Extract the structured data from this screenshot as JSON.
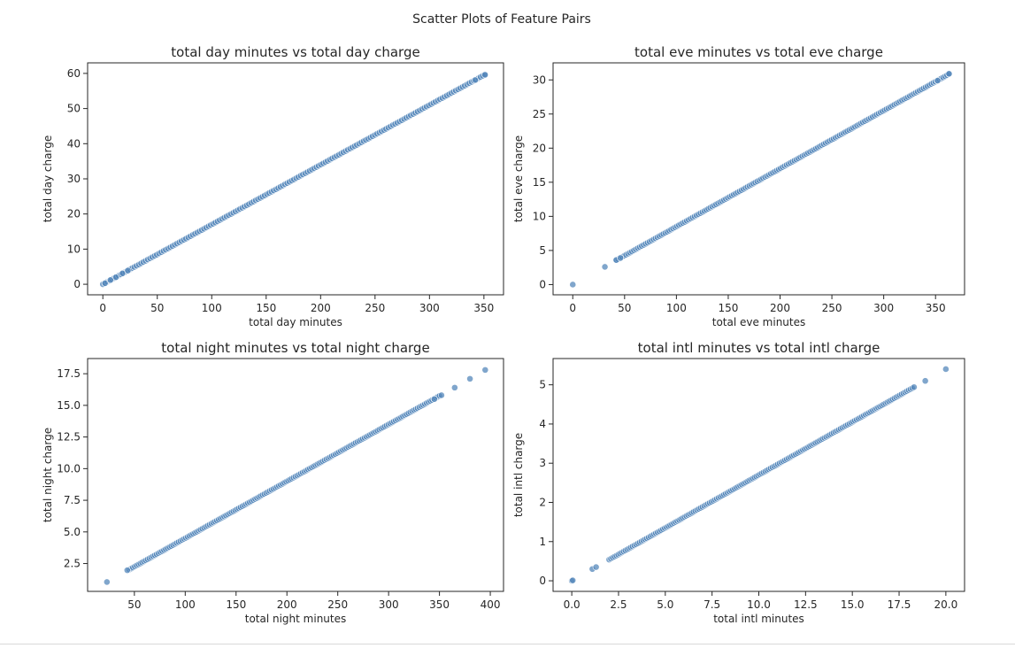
{
  "figure": {
    "suptitle": "Scatter Plots of Feature Pairs",
    "marker_color": "#4f84b8",
    "marker_edge": "#ffffff"
  },
  "chart_data": [
    {
      "type": "scatter",
      "title": "total day minutes vs total day charge",
      "xlabel": "total day minutes",
      "ylabel": "total day charge",
      "xlim": [
        -14,
        368
      ],
      "ylim": [
        -3,
        63
      ],
      "xticks": [
        0,
        50,
        100,
        150,
        200,
        250,
        300,
        350
      ],
      "yticks": [
        0,
        10,
        20,
        30,
        40,
        50,
        60
      ],
      "x_range": [
        0,
        351
      ],
      "slope": 0.17,
      "sparse_points": [
        [
          2,
          0.3
        ],
        [
          7,
          1.2
        ],
        [
          12,
          2.0
        ],
        [
          18,
          3.1
        ],
        [
          23,
          3.9
        ],
        [
          342,
          58.1
        ],
        [
          351,
          59.6
        ]
      ]
    },
    {
      "type": "scatter",
      "title": "total eve minutes vs total eve charge",
      "xlabel": "total eve minutes",
      "ylabel": "total eve charge",
      "xlim": [
        -19,
        378
      ],
      "ylim": [
        -1.5,
        32.5
      ],
      "xticks": [
        0,
        50,
        100,
        150,
        200,
        250,
        300,
        350
      ],
      "yticks": [
        0,
        5,
        10,
        15,
        20,
        25,
        30
      ],
      "x_range": [
        42,
        363
      ],
      "slope": 0.085,
      "sparse_points": [
        [
          0,
          0
        ],
        [
          31,
          2.6
        ],
        [
          42,
          3.6
        ],
        [
          46,
          3.9
        ],
        [
          352,
          29.9
        ],
        [
          363,
          30.9
        ]
      ]
    },
    {
      "type": "scatter",
      "title": "total night minutes vs total night charge",
      "xlabel": "total night minutes",
      "ylabel": "total night charge",
      "xlim": [
        4,
        413
      ],
      "ylim": [
        0.3,
        18.7
      ],
      "xticks": [
        50,
        100,
        150,
        200,
        250,
        300,
        350,
        400
      ],
      "yticks": [
        2.5,
        5.0,
        7.5,
        10.0,
        12.5,
        15.0,
        17.5
      ],
      "ytick_labels": [
        "2.5",
        "5.0",
        "7.5",
        "10.0",
        "12.5",
        "15.0",
        "17.5"
      ],
      "x_range": [
        45,
        350
      ],
      "slope": 0.045,
      "sparse_points": [
        [
          23,
          1.04
        ],
        [
          43,
          1.97
        ],
        [
          345,
          15.5
        ],
        [
          352,
          15.8
        ],
        [
          365,
          16.4
        ],
        [
          380,
          17.1
        ],
        [
          395,
          17.8
        ]
      ]
    },
    {
      "type": "scatter",
      "title": "total intl minutes vs total intl charge",
      "xlabel": "total intl minutes",
      "ylabel": "total intl charge",
      "xlim": [
        -1,
        21
      ],
      "ylim": [
        -0.27,
        5.67
      ],
      "xticks": [
        0.0,
        2.5,
        5.0,
        7.5,
        10.0,
        12.5,
        15.0,
        17.5,
        20.0
      ],
      "xtick_labels": [
        "0.0",
        "2.5",
        "5.0",
        "7.5",
        "10.0",
        "12.5",
        "15.0",
        "17.5",
        "20.0"
      ],
      "yticks": [
        0,
        1,
        2,
        3,
        4,
        5
      ],
      "x_range": [
        2.0,
        18.3
      ],
      "slope": 0.27,
      "sparse_points": [
        [
          0,
          0
        ],
        [
          0.05,
          0.01
        ],
        [
          1.1,
          0.3
        ],
        [
          1.3,
          0.35
        ],
        [
          18.9,
          5.1
        ],
        [
          20.0,
          5.4
        ]
      ]
    }
  ]
}
